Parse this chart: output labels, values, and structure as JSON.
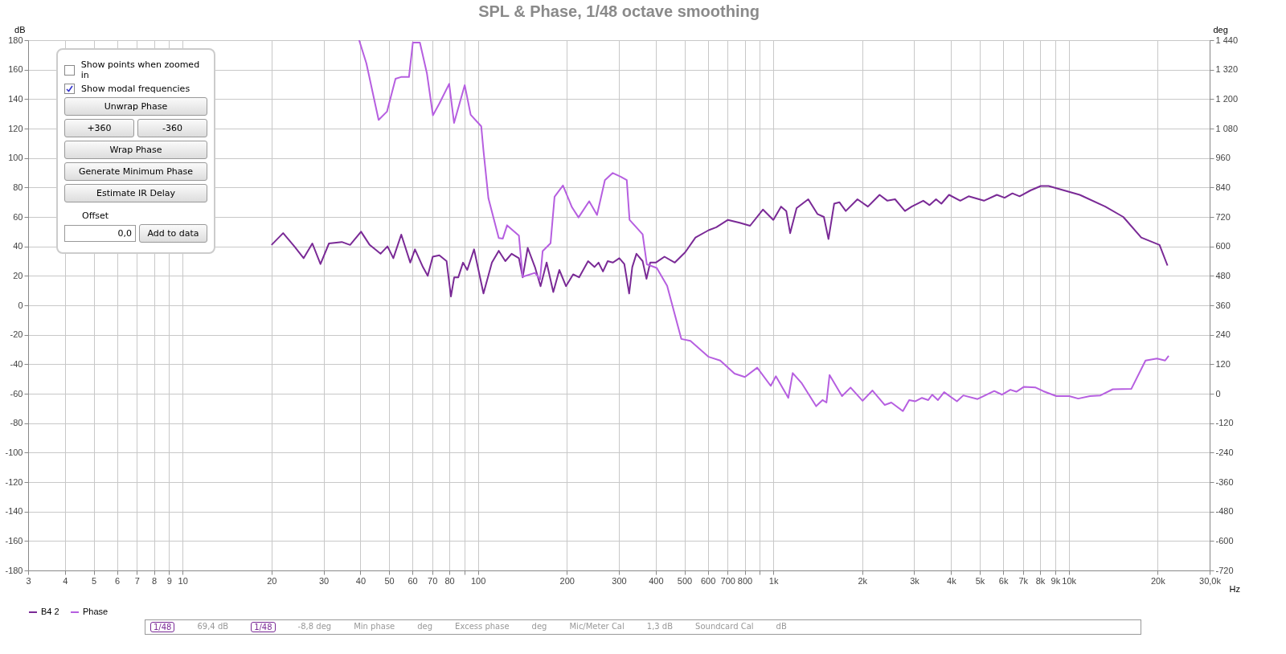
{
  "chart_data": {
    "type": "line",
    "title": "SPL & Phase, 1/48 octave smoothing",
    "xlabel": "Hz",
    "ylabel": "dB",
    "y2label": "deg",
    "log": "x",
    "grid": true,
    "legend": "bottom",
    "line_style": "solid",
    "xlim": [
      3,
      30000
    ],
    "ylim": [
      -180,
      180
    ],
    "y2lim": [
      -720,
      1440
    ],
    "xticks": [
      3,
      4,
      5,
      6,
      7,
      8,
      9,
      10,
      20,
      30,
      40,
      50,
      60,
      70,
      80,
      {
        "value": 90,
        "label": null
      },
      100,
      200,
      300,
      400,
      500,
      600,
      700,
      800,
      {
        "value": 900,
        "label": null
      },
      {
        "value": 1000,
        "label": "1k"
      },
      {
        "value": 2000,
        "label": "2k"
      },
      {
        "value": 3000,
        "label": "3k"
      },
      {
        "value": 4000,
        "label": "4k"
      },
      {
        "value": 5000,
        "label": "5k"
      },
      {
        "value": 6000,
        "label": "6k"
      },
      {
        "value": 7000,
        "label": "7k"
      },
      {
        "value": 8000,
        "label": "8k"
      },
      {
        "value": 9000,
        "label": "9k"
      },
      {
        "value": 10000,
        "label": "10k"
      },
      {
        "value": 20000,
        "label": "20k"
      },
      {
        "value": 30000,
        "label": "30,0k"
      }
    ],
    "yticks": [
      -180,
      -160,
      -140,
      -120,
      -100,
      -80,
      -60,
      -40,
      -20,
      0,
      20,
      40,
      60,
      80,
      100,
      120,
      140,
      160,
      180
    ],
    "y2ticks": [
      -720,
      -600,
      -480,
      -360,
      -240,
      -120,
      0,
      120,
      240,
      360,
      480,
      600,
      720,
      840,
      960,
      {
        "value": 1080,
        "label": "1 080"
      },
      {
        "value": 1200,
        "label": "1 200"
      },
      {
        "value": 1320,
        "label": "1 320"
      },
      {
        "value": 1440,
        "label": "1 440"
      }
    ],
    "series": [
      {
        "name": "B4 2",
        "color": "#7a2a96",
        "x": [
          20,
          21.9,
          23.9,
          25.7,
          27.5,
          29.3,
          31.3,
          34.6,
          36.9,
          40.2,
          43,
          46.8,
          49.4,
          51.7,
          55,
          59,
          61.2,
          65.1,
          67.6,
          70.3,
          74,
          78.3,
          81,
          83.1,
          85.8,
          89,
          92,
          97,
          104.4,
          111.5,
          117.6,
          123.8,
          130,
          137.6,
          141.7,
          147.4,
          155.9,
          162.9,
          170.8,
          179.9,
          188.6,
          198.6,
          210,
          220,
          236,
          248,
          256,
          265,
          275,
          286,
          301,
          313,
          325,
          333,
          344,
          361,
          372,
          383,
          400,
          428,
          464,
          503,
          545,
          604,
          641,
          702,
          769,
          834,
          922,
          1000,
          1062,
          1106,
          1140,
          1199,
          1313,
          1410,
          1483,
          1537,
          1607,
          1673,
          1759,
          1927,
          2090,
          2289,
          2433,
          2583,
          2790,
          2941,
          3218,
          3379,
          3555,
          3706,
          3934,
          4294,
          4582,
          5165,
          5712,
          6067,
          6447,
          6821,
          7421,
          8045,
          8546,
          10900,
          13300,
          15300,
          17600,
          20300,
          21600
        ],
        "values": [
          41,
          49,
          40,
          32,
          42,
          28,
          42,
          43,
          41,
          50,
          41,
          35,
          40,
          32,
          48,
          29,
          38,
          26,
          20,
          33,
          34,
          30,
          6,
          19,
          19,
          29,
          24,
          38,
          8,
          29,
          37,
          30,
          35,
          32,
          19,
          39,
          26,
          13,
          29,
          9,
          24,
          13,
          21,
          19,
          30,
          26,
          29,
          23,
          30,
          29,
          32,
          28,
          8,
          26,
          35,
          30,
          18,
          29,
          29,
          33,
          29,
          36,
          46,
          51,
          53,
          58,
          56,
          54,
          65,
          58,
          67,
          64,
          49,
          66,
          72,
          62,
          60,
          45,
          69,
          70,
          64,
          72,
          67,
          75,
          71,
          72,
          64,
          67,
          71,
          68,
          72,
          69,
          75,
          71,
          74,
          71,
          75,
          73,
          76,
          74,
          78,
          81,
          81,
          75,
          67,
          60,
          46,
          41,
          27
        ]
      },
      {
        "name": "Phase",
        "color": "#b65fe0",
        "axis": "y2",
        "x": [
          39.6,
          41.9,
          46.1,
          49.2,
          52.6,
          54.9,
          58.4,
          60.2,
          63.6,
          67.2,
          70.4,
          74.1,
          79.9,
          83,
          90.2,
          94.5,
          102.6,
          104.4,
          108.5,
          117.6,
          121.4,
          125.5,
          137.6,
          141.7,
          155.9,
          162.3,
          165.6,
          176.1,
          181.7,
          194,
          208,
          219,
          238,
          253,
          269,
          286,
          304,
          319,
          326,
          361,
          373,
          403,
          437,
          488,
          524,
          604,
          661,
          739,
          801,
          882,
          980,
          1020,
          1124,
          1163,
          1249,
          1396,
          1467,
          1513,
          1550,
          1708,
          1826,
          2005,
          2166,
          2384,
          2509,
          2745,
          2883,
          3028,
          3186,
          3346,
          3450,
          3608,
          3787,
          4184,
          4397,
          4914,
          5597,
          5947,
          6346,
          6649,
          7058,
          7727,
          8211,
          9078,
          10040,
          10770,
          11800,
          12800,
          14100,
          16300,
          18200,
          19900,
          21200,
          21800
        ],
        "values": [
          1440,
          1346,
          1115,
          1149,
          1283,
          1290,
          1290,
          1430,
          1430,
          1304,
          1134,
          1183,
          1262,
          1103,
          1257,
          1136,
          1089,
          990,
          796,
          634,
          632,
          686,
          644,
          476,
          492,
          466,
          581,
          613,
          802,
          848,
          760,
          718,
          784,
          728,
          870,
          899,
          884,
          870,
          708,
          649,
          527,
          512,
          439,
          223,
          215,
          150,
          135,
          82,
          68,
          106,
          32,
          71,
          -17,
          84,
          42,
          -51,
          -26,
          -36,
          76,
          -10,
          25,
          -29,
          13,
          -46,
          -36,
          -71,
          -26,
          -31,
          -17,
          -26,
          -4,
          -26,
          6,
          -31,
          -7,
          -22,
          11,
          -4,
          16,
          8,
          28,
          25,
          10,
          -10,
          -10,
          -20,
          -10,
          -7,
          18,
          20,
          135,
          143,
          135,
          154
        ]
      }
    ],
    "annotations": [
      "Show points when zoomed in",
      "Show modal frequencies",
      "Unwrap Phase",
      "+360",
      "-360",
      "Wrap Phase",
      "Generate Minimum Phase",
      "Estimate IR Delay",
      "Offset",
      "0,0",
      "Add to data",
      "1/48",
      "69,4 dB",
      "1/48",
      "-8,8 deg",
      "Min phase",
      "deg",
      "Excess phase",
      "deg",
      "Mic/Meter Cal",
      "1,3 dB",
      "Soundcard Cal",
      "dB"
    ]
  }
}
